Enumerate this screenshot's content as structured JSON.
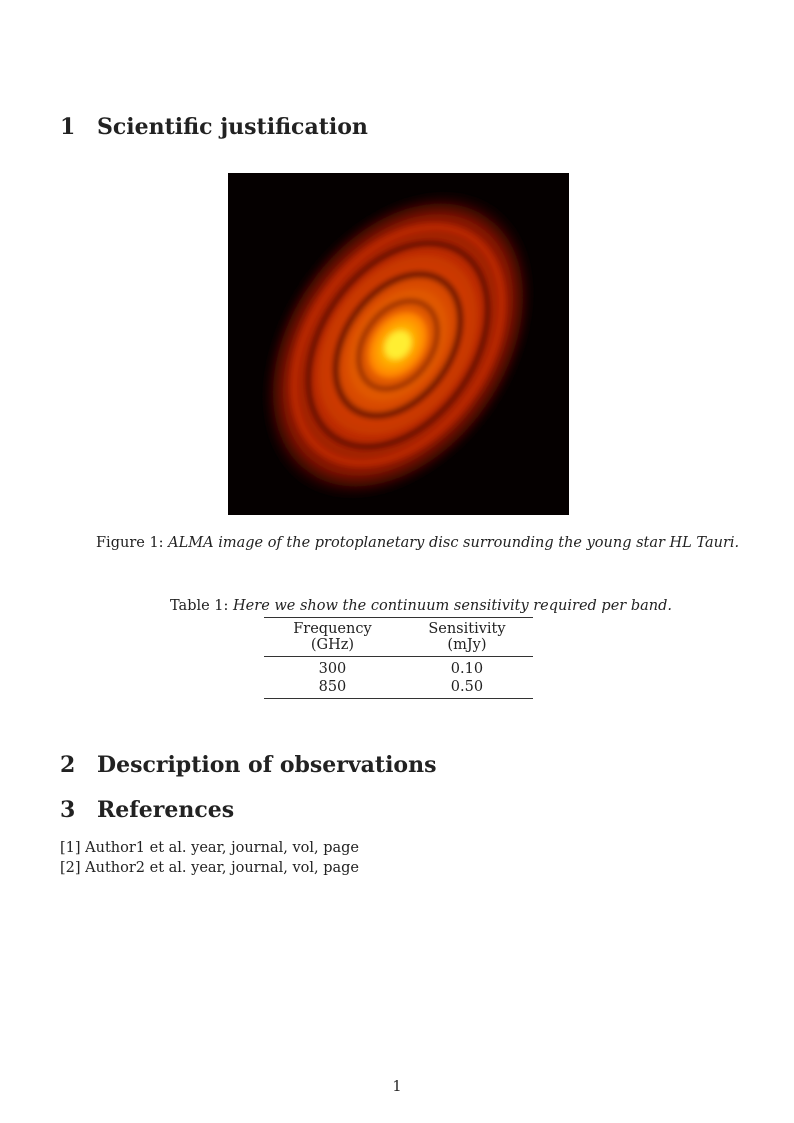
{
  "sections": [
    {
      "number": "1",
      "title": "Scientific justification"
    },
    {
      "number": "2",
      "title": "Description of observations"
    },
    {
      "number": "3",
      "title": "References"
    }
  ],
  "figure": {
    "label": "Figure 1:",
    "caption": "ALMA image of the protoplanetary disc surrounding the young star HL Tauri."
  },
  "table": {
    "label": "Table 1:",
    "caption": "Here we show the continuum sensitivity required per band.",
    "headers": [
      "Frequency (GHz)",
      "Sensitivity (mJy)"
    ],
    "rows": [
      [
        "300",
        "0.10"
      ],
      [
        "850",
        "0.50"
      ]
    ]
  },
  "references": [
    "[1] Author1 et al. year, journal, vol, page",
    "[2] Author2 et al. year, journal, vol, page"
  ],
  "page_number": "1"
}
